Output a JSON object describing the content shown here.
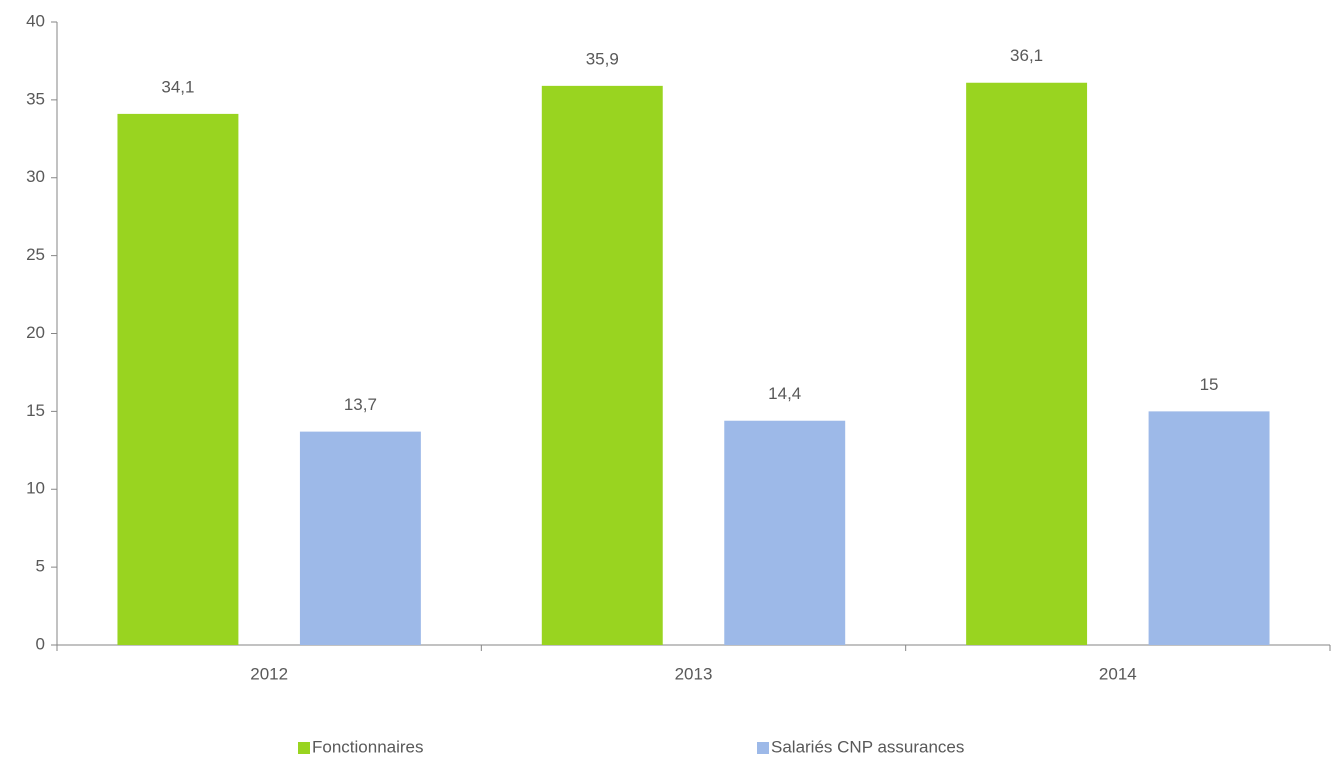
{
  "chart_data": {
    "type": "bar",
    "categories": [
      "2012",
      "2013",
      "2014"
    ],
    "series": [
      {
        "name": "Fonctionnaires",
        "color": "#99d420",
        "values": [
          34.1,
          35.9,
          36.1
        ],
        "value_labels": [
          "34,1",
          "35,9",
          "36,1"
        ]
      },
      {
        "name": "Salariés CNP assurances",
        "color": "#9db9e8",
        "values": [
          13.7,
          14.4,
          15
        ],
        "value_labels": [
          "13,7",
          "14,4",
          "15"
        ]
      }
    ],
    "ylim": [
      0,
      40
    ],
    "yticks": [
      0,
      5,
      10,
      15,
      20,
      25,
      30,
      35,
      40
    ],
    "grid": false,
    "legend": "bottom"
  }
}
